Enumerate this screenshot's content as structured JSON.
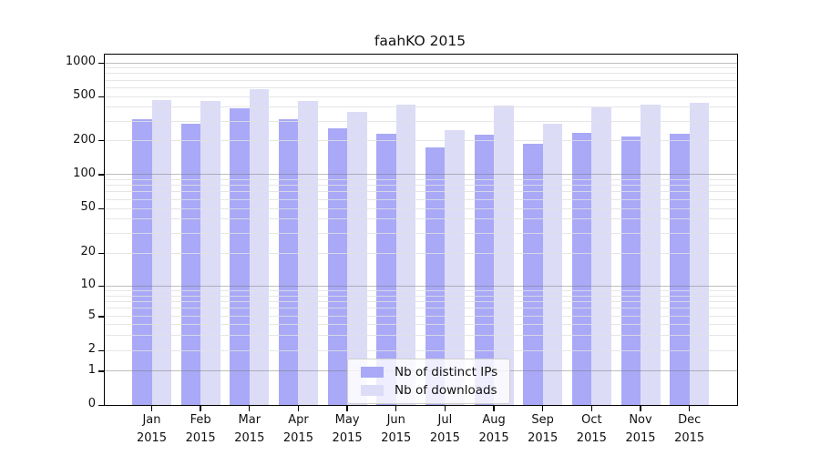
{
  "title": "faahKO 2015",
  "chart_data": {
    "type": "bar",
    "title": "faahKO 2015",
    "xlabel": "",
    "ylabel": "",
    "categories": [
      "Jan",
      "Feb",
      "Mar",
      "Apr",
      "May",
      "Jun",
      "Jul",
      "Aug",
      "Sep",
      "Oct",
      "Nov",
      "Dec"
    ],
    "year": "2015",
    "series": [
      {
        "name": "Nb of distinct IPs",
        "color": "#a9a9f7",
        "values": [
          310,
          280,
          390,
          310,
          255,
          228,
          172,
          225,
          185,
          235,
          215,
          230
        ]
      },
      {
        "name": "Nb of downloads",
        "color": "#dcdcf7",
        "values": [
          460,
          455,
          580,
          455,
          360,
          420,
          245,
          410,
          280,
          395,
          420,
          435
        ]
      }
    ],
    "yscale": "symlog",
    "yticks": [
      0,
      1,
      2,
      5,
      10,
      20,
      50,
      100,
      200,
      500,
      1000
    ],
    "ylim": [
      0,
      1150
    ],
    "grid": true,
    "grid_color_minor": "#e8e8e8",
    "grid_color_major": "#9a9a9a",
    "legend_position": "lower center"
  }
}
